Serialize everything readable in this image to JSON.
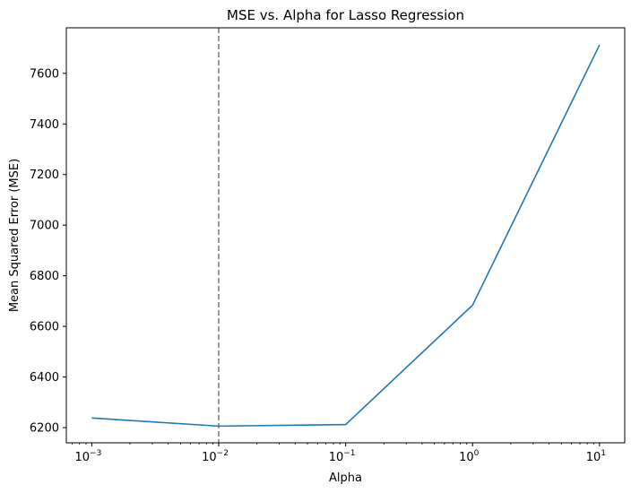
{
  "chart_data": {
    "type": "line",
    "title": "MSE vs. Alpha for Lasso Regression",
    "xlabel": "Alpha",
    "ylabel": "Mean Squared Error (MSE)",
    "x_scale": "log",
    "xlim": [
      0.00063,
      15.8
    ],
    "ylim": [
      6140,
      7780
    ],
    "x_ticks": [
      {
        "value": 0.001,
        "base": "10",
        "exp": "−3"
      },
      {
        "value": 0.01,
        "base": "10",
        "exp": "−2"
      },
      {
        "value": 0.1,
        "base": "10",
        "exp": "−1"
      },
      {
        "value": 1,
        "base": "10",
        "exp": "0"
      },
      {
        "value": 10,
        "base": "10",
        "exp": "1"
      }
    ],
    "y_ticks": [
      6200,
      6400,
      6600,
      6800,
      7000,
      7200,
      7400,
      7600
    ],
    "grid": false,
    "series": [
      {
        "x": [
          0.001,
          0.01,
          0.1,
          1,
          10
        ],
        "y": [
          6238,
          6206,
          6212,
          6684,
          7712
        ],
        "color": "#1f77b4"
      }
    ],
    "reference_line": {
      "orientation": "vertical",
      "x": 0.01,
      "color": "#808080",
      "style": "dashed"
    }
  }
}
